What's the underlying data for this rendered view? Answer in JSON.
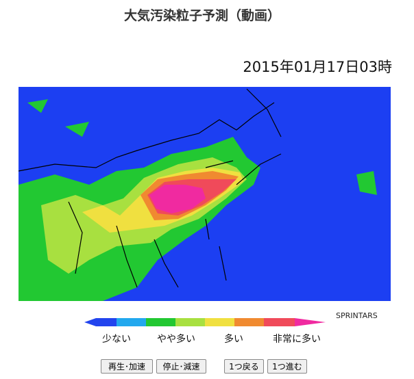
{
  "header": {
    "title": "大気汚染粒子予測（動画）",
    "timestamp": "2015年01月17日03時"
  },
  "map": {
    "credit": "SPRINTARS"
  },
  "legend": {
    "labels": [
      "少ない",
      "やや多い",
      "多い",
      "非常に多い"
    ]
  },
  "controls": {
    "buttons": [
      "再生･加速",
      "停止･減速",
      "1つ戻る",
      "1つ進む"
    ]
  }
}
